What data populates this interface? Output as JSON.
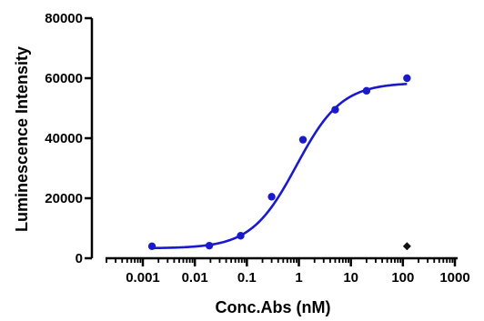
{
  "chart_data": {
    "type": "scatter",
    "title": "",
    "xlabel": "Conc.Abs (nM)",
    "ylabel": "Luminescence Intensity",
    "xscale": "log",
    "xlim": [
      0.0005,
      1000
    ],
    "ylim": [
      0,
      80000
    ],
    "xticks": [
      0.001,
      0.01,
      0.1,
      1,
      10,
      100,
      1000
    ],
    "xtick_labels": [
      "0.001",
      "0.01",
      "0.1",
      "1",
      "10",
      "100",
      "1000"
    ],
    "yticks": [
      0,
      20000,
      40000,
      60000,
      80000
    ],
    "ytick_labels": [
      "0",
      "20000",
      "40000",
      "60000",
      "80000"
    ],
    "grid": false,
    "series": [
      {
        "kind": "points",
        "marker": "circle",
        "color": "#1a1acc",
        "x": [
          0.0015,
          0.019,
          0.076,
          0.3,
          1.2,
          5,
          20,
          120
        ],
        "y": [
          4000,
          4200,
          7500,
          20500,
          39500,
          49500,
          55800,
          60000
        ]
      },
      {
        "kind": "fit",
        "model": "4PL",
        "color": "#1a1acc",
        "bottom": 3300,
        "top": 58500,
        "ec50": 0.9,
        "hill": 1.0,
        "x_range": [
          0.0015,
          120
        ]
      },
      {
        "kind": "points",
        "marker": "diamond",
        "color": "#111111",
        "x": [
          120
        ],
        "y": [
          4000
        ]
      }
    ]
  }
}
